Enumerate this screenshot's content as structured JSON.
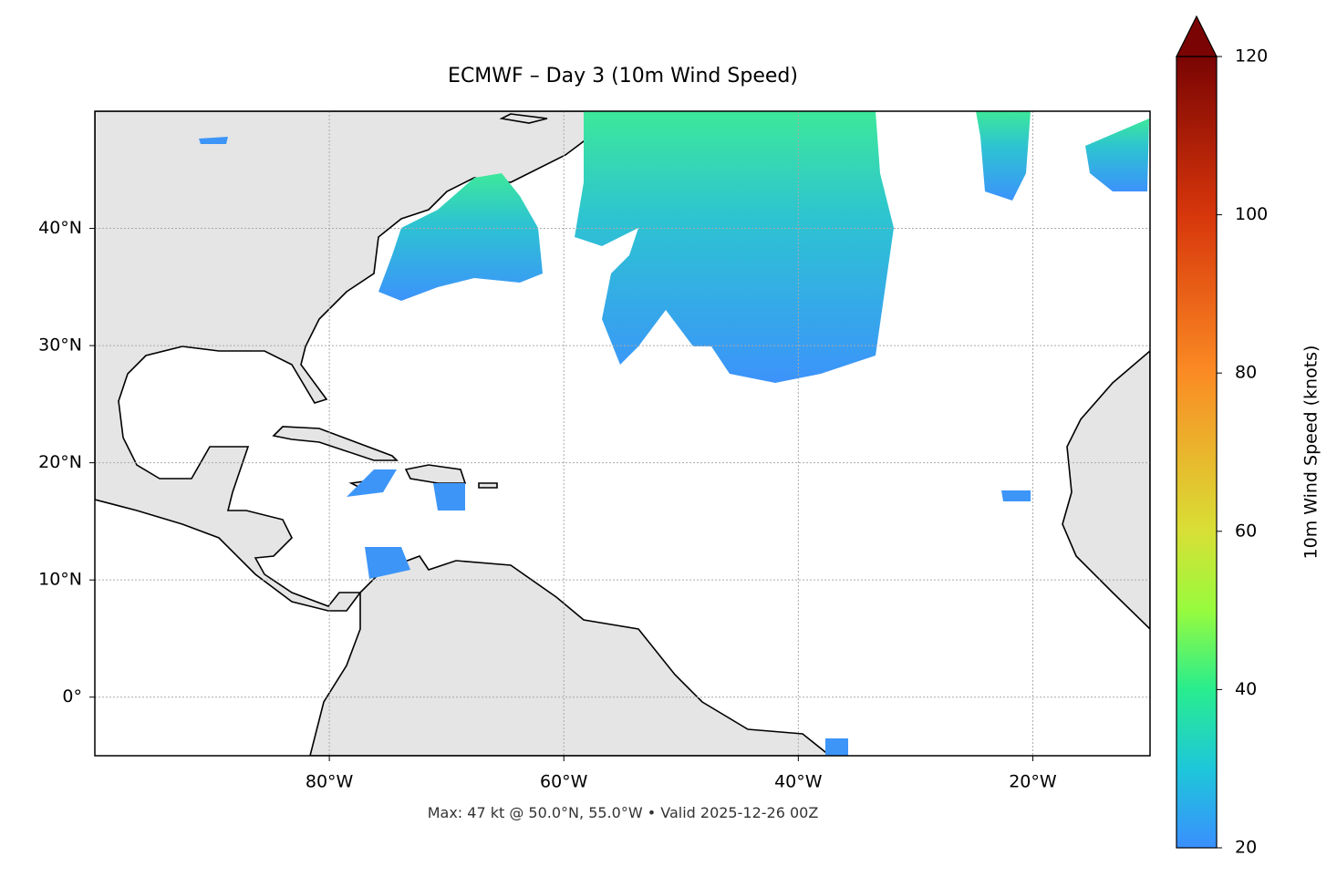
{
  "title": "ECMWF – Day 3 (10m Wind Speed)",
  "map": {
    "xlim": [
      -100,
      -10
    ],
    "ylim": [
      -5,
      50
    ],
    "xticks": [
      {
        "value": -80,
        "label": "80°W"
      },
      {
        "value": -60,
        "label": "60°W"
      },
      {
        "value": -40,
        "label": "40°W"
      },
      {
        "value": -20,
        "label": "20°W"
      }
    ],
    "yticks": [
      {
        "value": 0,
        "label": "0°"
      },
      {
        "value": 10,
        "label": "10°N"
      },
      {
        "value": 20,
        "label": "20°N"
      },
      {
        "value": 30,
        "label": "30°N"
      },
      {
        "value": 40,
        "label": "40°N"
      }
    ],
    "grid": true
  },
  "colorbar": {
    "label": "10m Wind Speed (knots)",
    "lim": [
      20,
      120
    ],
    "ticks": [
      20,
      40,
      60,
      80,
      100,
      120
    ]
  },
  "footer": "Max: 47 kt @ 50.0°N, 55.0°W • Valid 2025-12-26 00Z"
}
